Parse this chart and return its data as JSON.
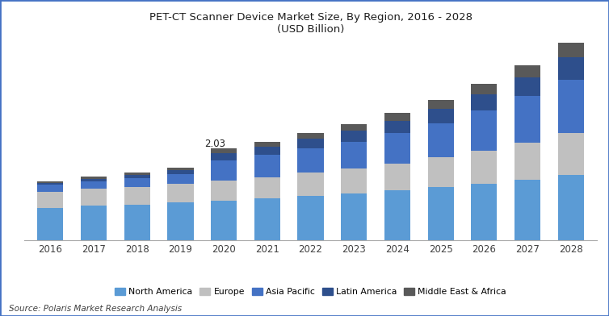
{
  "title_line1": "PET-CT Scanner Device Market Size, By Region, 2016 - 2028",
  "title_line2": "(USD Billion)",
  "years": [
    2016,
    2017,
    2018,
    2019,
    2020,
    2021,
    2022,
    2023,
    2024,
    2025,
    2026,
    2027,
    2028
  ],
  "north_america": [
    0.72,
    0.76,
    0.79,
    0.83,
    0.88,
    0.92,
    0.98,
    1.03,
    1.1,
    1.17,
    1.25,
    1.34,
    1.44
  ],
  "europe": [
    0.35,
    0.37,
    0.39,
    0.41,
    0.44,
    0.47,
    0.51,
    0.55,
    0.6,
    0.66,
    0.73,
    0.82,
    0.93
  ],
  "asia_pacific": [
    0.15,
    0.17,
    0.19,
    0.22,
    0.44,
    0.49,
    0.54,
    0.6,
    0.67,
    0.76,
    0.88,
    1.02,
    1.18
  ],
  "latin_america": [
    0.05,
    0.06,
    0.08,
    0.09,
    0.17,
    0.19,
    0.21,
    0.24,
    0.27,
    0.31,
    0.36,
    0.42,
    0.49
  ],
  "middle_east": [
    0.03,
    0.04,
    0.05,
    0.06,
    0.1,
    0.11,
    0.13,
    0.15,
    0.17,
    0.2,
    0.23,
    0.27,
    0.32
  ],
  "colors": {
    "north_america": "#5B9BD5",
    "europe": "#C0C0C0",
    "asia_pacific": "#4472C4",
    "latin_america": "#2E4F8C",
    "middle_east": "#595959"
  },
  "annotation_year": 2020,
  "annotation_value": "2.03",
  "source_text": "Source: Polaris Market Research Analysis",
  "bar_width": 0.6,
  "background_color": "#FFFFFF",
  "border_color": "#4472C4"
}
